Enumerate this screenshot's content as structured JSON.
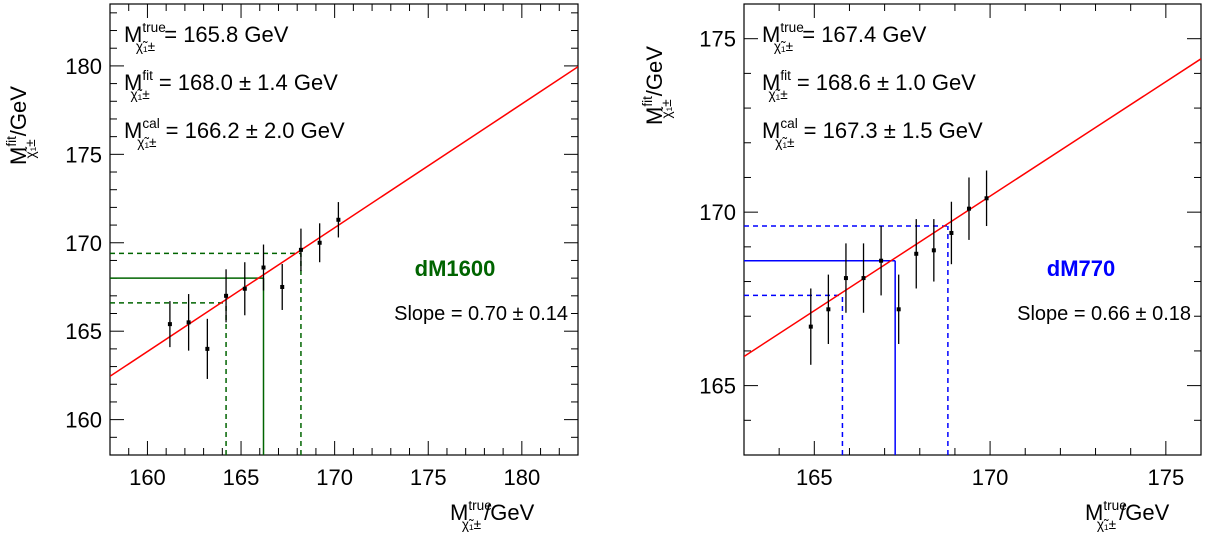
{
  "chart_data": [
    {
      "type": "scatter",
      "panel": "left",
      "xlabel": {
        "base": "M",
        "sup": "true",
        "sub": "χ̃₁±",
        "unit": "/GeV"
      },
      "ylabel": {
        "base": "M",
        "sup": "fit",
        "sub": "χ̃₁±",
        "unit": "/GeV"
      },
      "xlim": [
        158,
        183
      ],
      "ylim": [
        158,
        183.5
      ],
      "xticks": [
        160,
        165,
        170,
        175,
        180
      ],
      "yticks": [
        160,
        165,
        170,
        175,
        180
      ],
      "grid": false,
      "annotations": [
        {
          "base": "M",
          "sup": "true",
          "sub": "χ̃₁±",
          "text": "= 165.8 GeV"
        },
        {
          "base": "M",
          "sup": "fit",
          "sub": "χ̃₁±",
          "text": "= 168.0 ± 1.4 GeV"
        },
        {
          "base": "M",
          "sup": "cal",
          "sub": "χ̃₁±",
          "text": "= 166.2 ± 2.0 GeV"
        }
      ],
      "label": "dM1600",
      "label_color": "#006400",
      "slope_text": "Slope = 0.70 ± 0.14",
      "series": [
        {
          "x": [
            161.2,
            162.2,
            163.2,
            164.2,
            165.2,
            166.2,
            167.2,
            168.2,
            169.2,
            170.2
          ],
          "y": [
            165.4,
            165.5,
            164.0,
            167.0,
            167.4,
            168.6,
            167.5,
            169.6,
            170.0,
            171.3
          ],
          "yerr": [
            1.3,
            1.6,
            1.7,
            1.5,
            1.5,
            1.3,
            1.3,
            1.2,
            1.1,
            1.0
          ],
          "color": "#000000"
        }
      ],
      "fit_line": {
        "x": [
          158,
          183
        ],
        "y": [
          162.45,
          179.95
        ],
        "color": "#ff0000"
      },
      "calibration_color": "#006400",
      "measured_fit": {
        "value": 168.0,
        "low": 166.6,
        "high": 169.4
      },
      "calibrated": {
        "value": 166.2,
        "low": 164.2,
        "high": 168.2
      }
    },
    {
      "type": "scatter",
      "panel": "right",
      "xlabel": {
        "base": "M",
        "sup": "true",
        "sub": "χ̃₁±",
        "unit": "/GeV"
      },
      "ylabel": {
        "base": "M",
        "sup": "fit",
        "sub": "χ̃₁±",
        "unit": "/GeV"
      },
      "xlim": [
        163,
        176
      ],
      "ylim": [
        163,
        176
      ],
      "xticks": [
        165,
        170,
        175
      ],
      "yticks": [
        165,
        170,
        175
      ],
      "grid": false,
      "annotations": [
        {
          "base": "M",
          "sup": "true",
          "sub": "χ̃₁±",
          "text": "= 167.4 GeV"
        },
        {
          "base": "M",
          "sup": "fit",
          "sub": "χ̃₁±",
          "text": "= 168.6 ± 1.0 GeV"
        },
        {
          "base": "M",
          "sup": "cal",
          "sub": "χ̃₁±",
          "text": "= 167.3 ± 1.5 GeV"
        }
      ],
      "label": "dM770",
      "label_color": "#0000ff",
      "slope_text": "Slope = 0.66 ± 0.18",
      "series": [
        {
          "x": [
            164.9,
            165.4,
            165.9,
            166.4,
            166.9,
            167.4,
            167.9,
            168.4,
            168.9,
            169.4,
            169.9
          ],
          "y": [
            166.7,
            167.2,
            168.1,
            168.1,
            168.6,
            167.2,
            168.8,
            168.9,
            169.4,
            170.1,
            170.4
          ],
          "yerr": [
            1.1,
            1.0,
            1.0,
            1.0,
            1.0,
            1.0,
            1.0,
            0.9,
            0.9,
            0.9,
            0.8
          ],
          "color": "#000000"
        }
      ],
      "fit_line": {
        "x": [
          163,
          176
        ],
        "y": [
          165.84,
          174.42
        ],
        "color": "#ff0000"
      },
      "calibration_color": "#0000ff",
      "measured_fit": {
        "value": 168.6,
        "low": 167.6,
        "high": 169.6
      },
      "calibrated": {
        "value": 167.3,
        "low": 165.8,
        "high": 168.8
      }
    }
  ]
}
